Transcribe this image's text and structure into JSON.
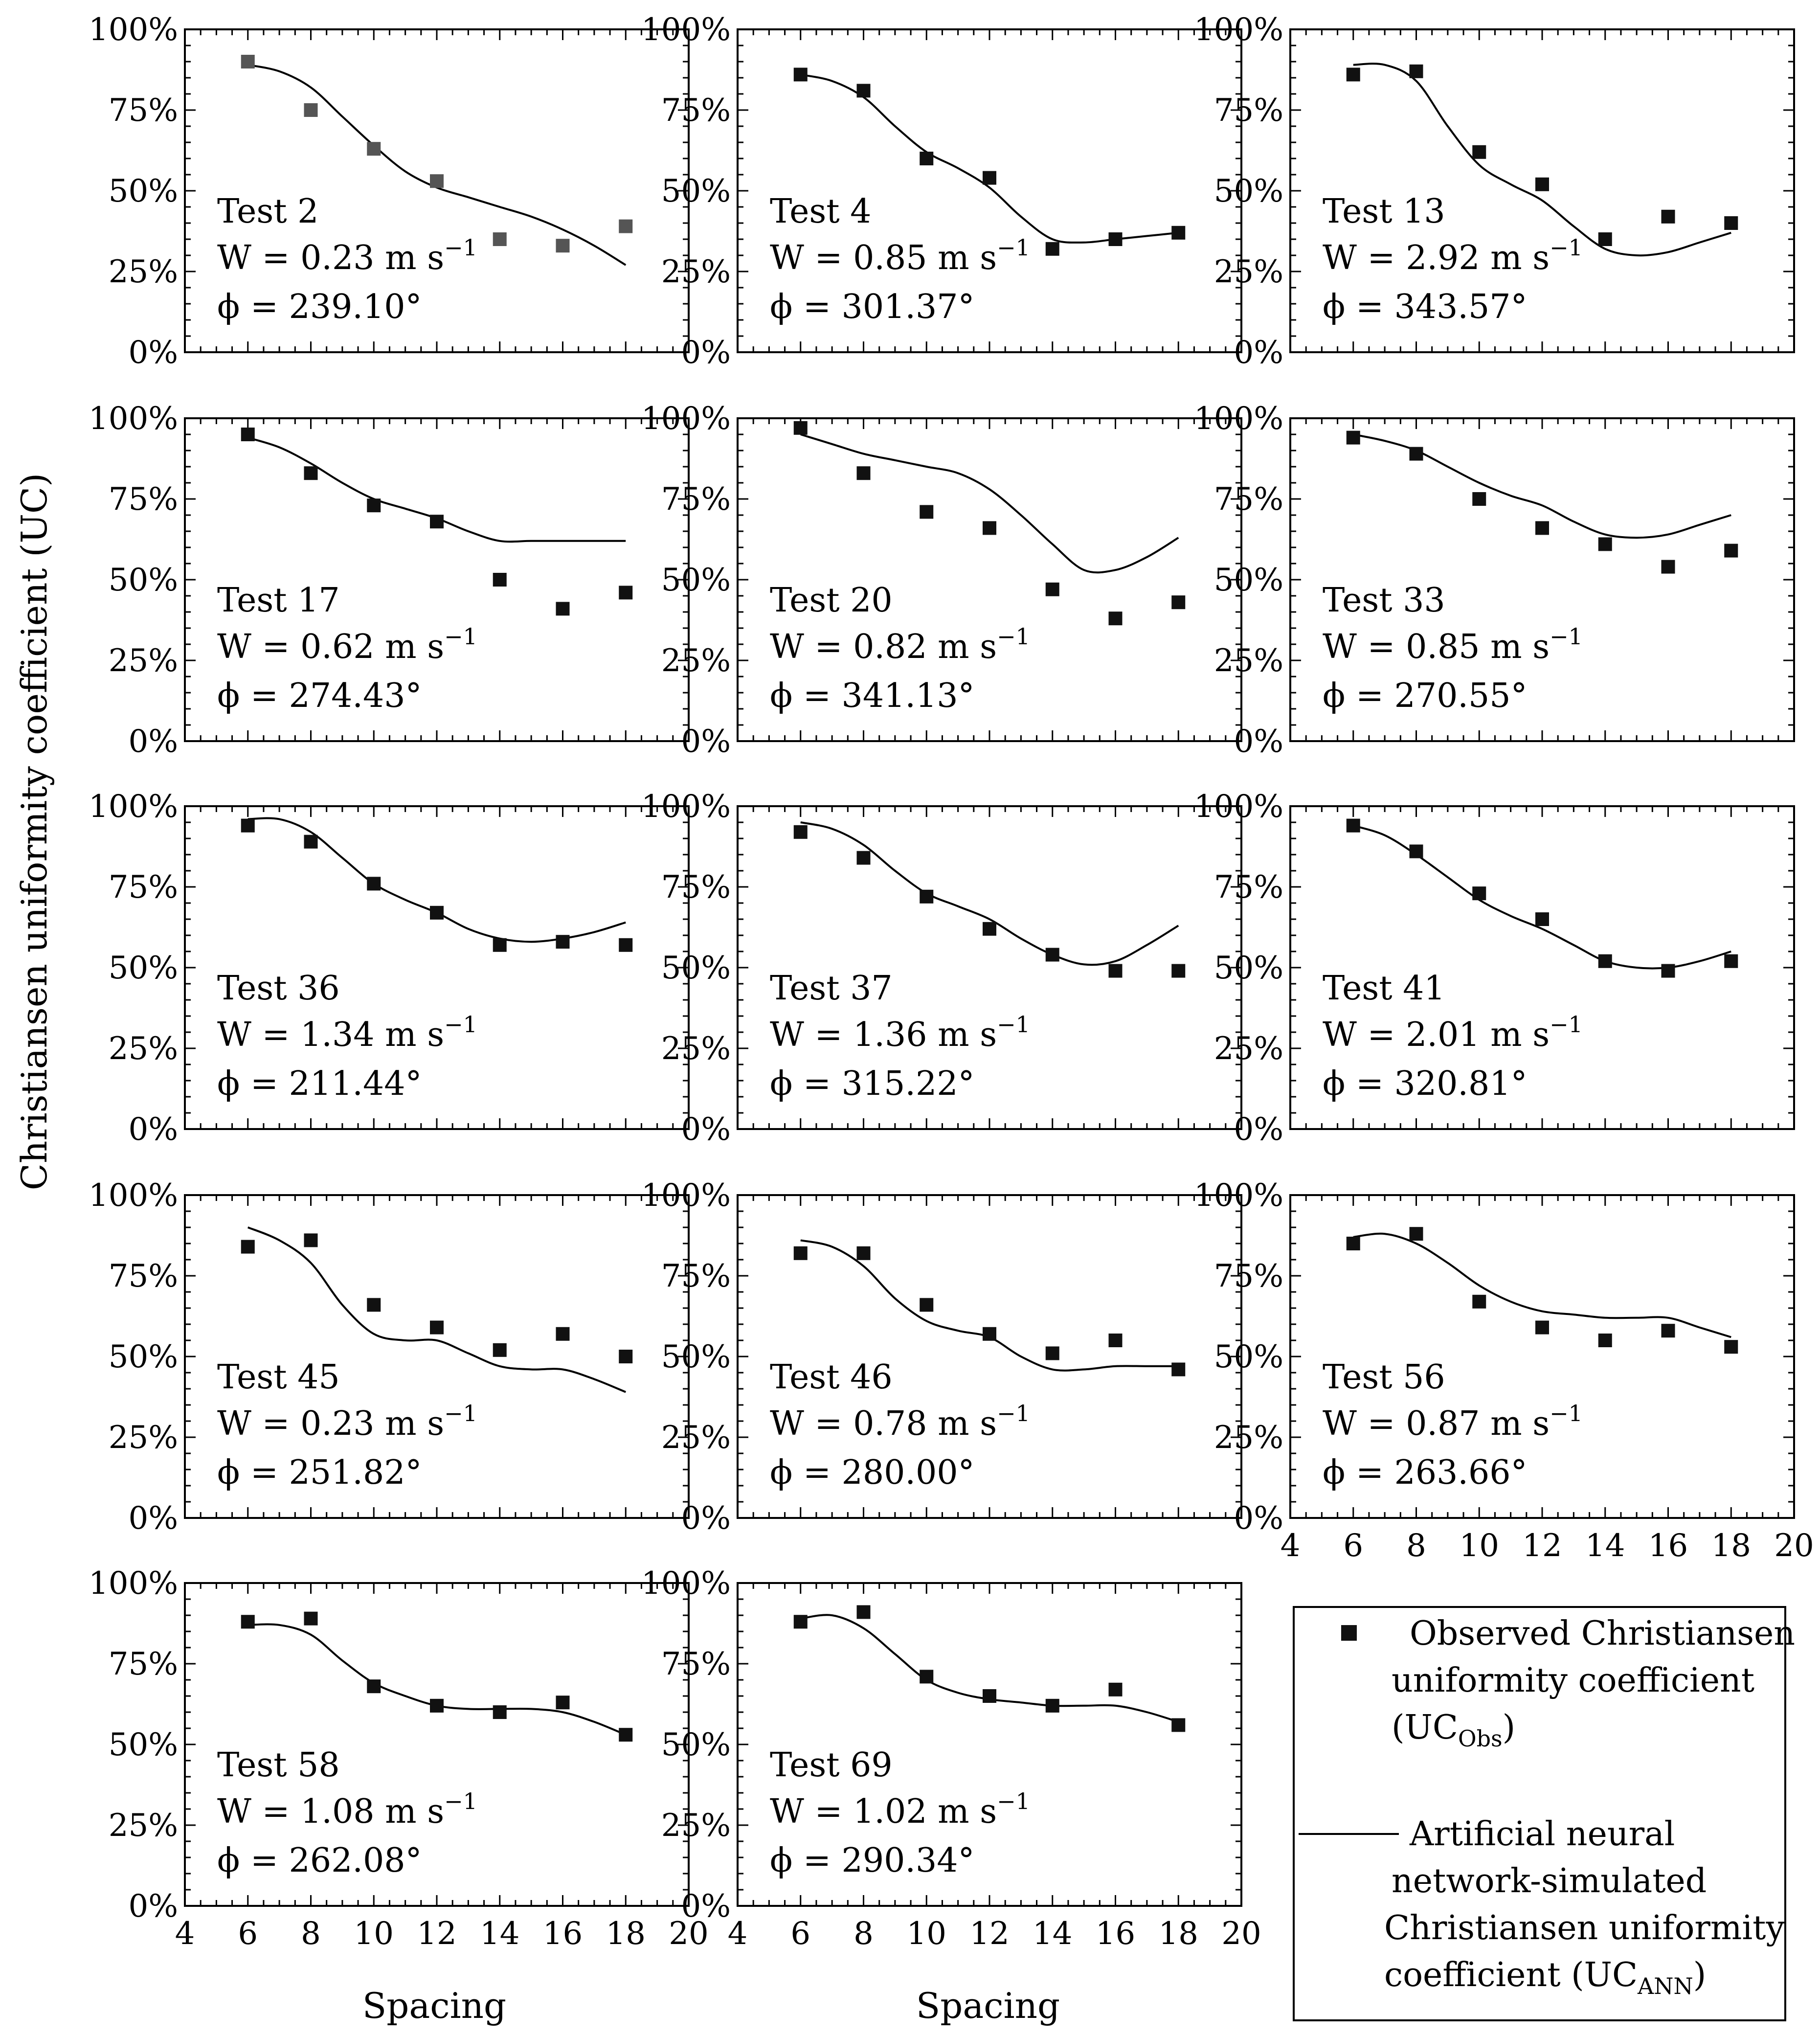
{
  "figure": {
    "ylabel": "Christiansen uniformity coefficient (UC)",
    "xlabel": "Spacing"
  },
  "legend": {
    "observed_text": [
      "Observed Christiansen",
      "uniformity coefficient"
    ],
    "observed_sym": {
      "base": "(UC",
      "sub": "Obs",
      "end": ")"
    },
    "ann_text": [
      "Artificial neural",
      "network-simulated",
      "Christiansen uniformity"
    ],
    "ann_sym": {
      "base": "coefficient (UC",
      "sub": "ANN",
      "end": ")"
    }
  },
  "colors": {
    "marker": "#111111",
    "marker_test2": "#555555",
    "line": "#000000",
    "axis": "#000000"
  },
  "chart_data": [
    {
      "type": "scatter+line",
      "title": "Test 2",
      "wind_label": "W = 0.23 m s",
      "wind_exp": "−1",
      "angle_label": "ϕ = 239.10°",
      "xlim": [
        4,
        20
      ],
      "ylim": [
        0,
        100
      ],
      "xticks": [
        4,
        6,
        8,
        10,
        12,
        14,
        16,
        18,
        20
      ],
      "yticks": [
        0,
        25,
        50,
        75,
        100
      ],
      "ytick_labels": [
        "0%",
        "25%",
        "50%",
        "75%",
        "100%"
      ],
      "observed": {
        "x": [
          6,
          8,
          10,
          12,
          14,
          16,
          18
        ],
        "y": [
          90,
          75,
          63,
          53,
          35,
          33,
          39
        ]
      },
      "ann": {
        "x": [
          6,
          7,
          8,
          9,
          10,
          11,
          12,
          13,
          14,
          15,
          16,
          17,
          18
        ],
        "y": [
          89,
          87,
          82,
          73,
          64,
          56,
          51,
          48,
          45,
          42,
          38,
          33,
          27
        ]
      },
      "marker_color": "#555555"
    },
    {
      "type": "scatter+line",
      "title": "Test 4",
      "wind_label": "W = 0.85 m s",
      "wind_exp": "−1",
      "angle_label": "ϕ = 301.37°",
      "xlim": [
        4,
        20
      ],
      "ylim": [
        0,
        100
      ],
      "xticks": [
        4,
        6,
        8,
        10,
        12,
        14,
        16,
        18,
        20
      ],
      "yticks": [
        0,
        25,
        50,
        75,
        100
      ],
      "ytick_labels": [
        "0%",
        "25%",
        "50%",
        "75%",
        "100%"
      ],
      "observed": {
        "x": [
          6,
          8,
          10,
          12,
          14,
          16,
          18
        ],
        "y": [
          86,
          81,
          60,
          54,
          32,
          35,
          37
        ]
      },
      "ann": {
        "x": [
          6,
          7,
          8,
          9,
          10,
          11,
          12,
          13,
          14,
          15,
          16,
          17,
          18
        ],
        "y": [
          86,
          84,
          79,
          70,
          62,
          57,
          51,
          42,
          35,
          34,
          35,
          36,
          37
        ]
      }
    },
    {
      "type": "scatter+line",
      "title": "Test 13",
      "wind_label": "W = 2.92 m s",
      "wind_exp": "−1",
      "angle_label": "ϕ = 343.57°",
      "xlim": [
        4,
        20
      ],
      "ylim": [
        0,
        100
      ],
      "xticks": [
        4,
        6,
        8,
        10,
        12,
        14,
        16,
        18,
        20
      ],
      "yticks": [
        0,
        25,
        50,
        75,
        100
      ],
      "ytick_labels": [
        "0%",
        "25%",
        "50%",
        "75%",
        "100%"
      ],
      "observed": {
        "x": [
          6,
          8,
          10,
          12,
          14,
          16,
          18
        ],
        "y": [
          86,
          87,
          62,
          52,
          35,
          42,
          40
        ]
      },
      "ann": {
        "x": [
          6,
          7,
          8,
          9,
          10,
          11,
          12,
          13,
          14,
          15,
          16,
          17,
          18
        ],
        "y": [
          89,
          89,
          84,
          70,
          58,
          52,
          47,
          39,
          32,
          30,
          31,
          34,
          37
        ]
      }
    },
    {
      "type": "scatter+line",
      "title": "Test 17",
      "wind_label": "W = 0.62 m s",
      "wind_exp": "−1",
      "angle_label": "ϕ = 274.43°",
      "xlim": [
        4,
        20
      ],
      "ylim": [
        0,
        100
      ],
      "xticks": [
        4,
        6,
        8,
        10,
        12,
        14,
        16,
        18,
        20
      ],
      "yticks": [
        0,
        25,
        50,
        75,
        100
      ],
      "ytick_labels": [
        "0%",
        "25%",
        "50%",
        "75%",
        "100%"
      ],
      "observed": {
        "x": [
          6,
          8,
          10,
          12,
          14,
          16,
          18
        ],
        "y": [
          95,
          83,
          73,
          68,
          50,
          41,
          46
        ]
      },
      "ann": {
        "x": [
          6,
          7,
          8,
          9,
          10,
          11,
          12,
          13,
          14,
          15,
          16,
          17,
          18
        ],
        "y": [
          94,
          91,
          86,
          80,
          75,
          72,
          69,
          65,
          62,
          62,
          62,
          62,
          62
        ]
      }
    },
    {
      "type": "scatter+line",
      "title": "Test 20",
      "wind_label": "W = 0.82 m s",
      "wind_exp": "−1",
      "angle_label": "ϕ = 341.13°",
      "xlim": [
        4,
        20
      ],
      "ylim": [
        0,
        100
      ],
      "xticks": [
        4,
        6,
        8,
        10,
        12,
        14,
        16,
        18,
        20
      ],
      "yticks": [
        0,
        25,
        50,
        75,
        100
      ],
      "ytick_labels": [
        "0%",
        "25%",
        "50%",
        "75%",
        "100%"
      ],
      "observed": {
        "x": [
          6,
          8,
          10,
          12,
          14,
          16,
          18
        ],
        "y": [
          97,
          83,
          71,
          66,
          47,
          38,
          43
        ]
      },
      "ann": {
        "x": [
          6,
          7,
          8,
          9,
          10,
          11,
          12,
          13,
          14,
          15,
          16,
          17,
          18
        ],
        "y": [
          95,
          92,
          89,
          87,
          85,
          83,
          78,
          70,
          61,
          53,
          53,
          57,
          63
        ]
      }
    },
    {
      "type": "scatter+line",
      "title": "Test 33",
      "wind_label": "W = 0.85 m s",
      "wind_exp": "−1",
      "angle_label": "ϕ = 270.55°",
      "xlim": [
        4,
        20
      ],
      "ylim": [
        0,
        100
      ],
      "xticks": [
        4,
        6,
        8,
        10,
        12,
        14,
        16,
        18,
        20
      ],
      "yticks": [
        0,
        25,
        50,
        75,
        100
      ],
      "ytick_labels": [
        "0%",
        "25%",
        "50%",
        "75%",
        "100%"
      ],
      "observed": {
        "x": [
          6,
          8,
          10,
          12,
          14,
          16,
          18
        ],
        "y": [
          94,
          89,
          75,
          66,
          61,
          54,
          59
        ]
      },
      "ann": {
        "x": [
          6,
          7,
          8,
          9,
          10,
          11,
          12,
          13,
          14,
          15,
          16,
          17,
          18
        ],
        "y": [
          95,
          93,
          90,
          85,
          80,
          76,
          73,
          68,
          64,
          63,
          64,
          67,
          70
        ]
      }
    },
    {
      "type": "scatter+line",
      "title": "Test 36",
      "wind_label": "W = 1.34 m s",
      "wind_exp": "−1",
      "angle_label": "ϕ = 211.44°",
      "xlim": [
        4,
        20
      ],
      "ylim": [
        0,
        100
      ],
      "xticks": [
        4,
        6,
        8,
        10,
        12,
        14,
        16,
        18,
        20
      ],
      "yticks": [
        0,
        25,
        50,
        75,
        100
      ],
      "ytick_labels": [
        "0%",
        "25%",
        "50%",
        "75%",
        "100%"
      ],
      "observed": {
        "x": [
          6,
          8,
          10,
          12,
          14,
          16,
          18
        ],
        "y": [
          94,
          89,
          76,
          67,
          57,
          58,
          57
        ]
      },
      "ann": {
        "x": [
          6,
          7,
          8,
          9,
          10,
          11,
          12,
          13,
          14,
          15,
          16,
          17,
          18
        ],
        "y": [
          96,
          96,
          92,
          84,
          76,
          71,
          67,
          62,
          59,
          58,
          59,
          61,
          64
        ]
      }
    },
    {
      "type": "scatter+line",
      "title": "Test 37",
      "wind_label": "W = 1.36 m s",
      "wind_exp": "−1",
      "angle_label": "ϕ = 315.22°",
      "xlim": [
        4,
        20
      ],
      "ylim": [
        0,
        100
      ],
      "xticks": [
        4,
        6,
        8,
        10,
        12,
        14,
        16,
        18,
        20
      ],
      "yticks": [
        0,
        25,
        50,
        75,
        100
      ],
      "ytick_labels": [
        "0%",
        "25%",
        "50%",
        "75%",
        "100%"
      ],
      "observed": {
        "x": [
          6,
          8,
          10,
          12,
          14,
          16,
          18
        ],
        "y": [
          92,
          84,
          72,
          62,
          54,
          49,
          49
        ]
      },
      "ann": {
        "x": [
          6,
          7,
          8,
          9,
          10,
          11,
          12,
          13,
          14,
          15,
          16,
          17,
          18
        ],
        "y": [
          95,
          93,
          88,
          80,
          73,
          69,
          65,
          59,
          54,
          51,
          52,
          57,
          63
        ]
      }
    },
    {
      "type": "scatter+line",
      "title": "Test 41",
      "wind_label": "W = 2.01 m s",
      "wind_exp": "−1",
      "angle_label": "ϕ = 320.81°",
      "xlim": [
        4,
        20
      ],
      "ylim": [
        0,
        100
      ],
      "xticks": [
        4,
        6,
        8,
        10,
        12,
        14,
        16,
        18,
        20
      ],
      "yticks": [
        0,
        25,
        50,
        75,
        100
      ],
      "ytick_labels": [
        "0%",
        "25%",
        "50%",
        "75%",
        "100%"
      ],
      "observed": {
        "x": [
          6,
          8,
          10,
          12,
          14,
          16,
          18
        ],
        "y": [
          94,
          86,
          73,
          65,
          52,
          49,
          52
        ]
      },
      "ann": {
        "x": [
          6,
          7,
          8,
          9,
          10,
          11,
          12,
          13,
          14,
          15,
          16,
          17,
          18
        ],
        "y": [
          94,
          91,
          85,
          78,
          71,
          66,
          62,
          57,
          52,
          50,
          50,
          52,
          55
        ]
      }
    },
    {
      "type": "scatter+line",
      "title": "Test 45",
      "wind_label": "W = 0.23 m s",
      "wind_exp": "−1",
      "angle_label": "ϕ = 251.82°",
      "xlim": [
        4,
        20
      ],
      "ylim": [
        0,
        100
      ],
      "xticks": [
        4,
        6,
        8,
        10,
        12,
        14,
        16,
        18,
        20
      ],
      "yticks": [
        0,
        25,
        50,
        75,
        100
      ],
      "ytick_labels": [
        "0%",
        "25%",
        "50%",
        "75%",
        "100%"
      ],
      "observed": {
        "x": [
          6,
          8,
          10,
          12,
          14,
          16,
          18
        ],
        "y": [
          84,
          86,
          66,
          59,
          52,
          57,
          50
        ]
      },
      "ann": {
        "x": [
          6,
          7,
          8,
          9,
          10,
          11,
          12,
          13,
          14,
          15,
          16,
          17,
          18
        ],
        "y": [
          90,
          86,
          79,
          66,
          57,
          55,
          55,
          51,
          47,
          46,
          46,
          43,
          39
        ]
      }
    },
    {
      "type": "scatter+line",
      "title": "Test 46",
      "wind_label": "W = 0.78 m s",
      "wind_exp": "−1",
      "angle_label": "ϕ = 280.00°",
      "xlim": [
        4,
        20
      ],
      "ylim": [
        0,
        100
      ],
      "xticks": [
        4,
        6,
        8,
        10,
        12,
        14,
        16,
        18,
        20
      ],
      "yticks": [
        0,
        25,
        50,
        75,
        100
      ],
      "ytick_labels": [
        "0%",
        "25%",
        "50%",
        "75%",
        "100%"
      ],
      "observed": {
        "x": [
          6,
          8,
          10,
          12,
          14,
          16,
          18
        ],
        "y": [
          82,
          82,
          66,
          57,
          51,
          55,
          46
        ]
      },
      "ann": {
        "x": [
          6,
          7,
          8,
          9,
          10,
          11,
          12,
          13,
          14,
          15,
          16,
          17,
          18
        ],
        "y": [
          86,
          84,
          78,
          68,
          61,
          58,
          56,
          50,
          46,
          46,
          47,
          47,
          47
        ]
      }
    },
    {
      "type": "scatter+line",
      "title": "Test 56",
      "wind_label": "W = 0.87 m s",
      "wind_exp": "−1",
      "angle_label": "ϕ = 263.66°",
      "xlim": [
        4,
        20
      ],
      "ylim": [
        0,
        100
      ],
      "xticks": [
        4,
        6,
        8,
        10,
        12,
        14,
        16,
        18,
        20
      ],
      "yticks": [
        0,
        25,
        50,
        75,
        100
      ],
      "ytick_labels": [
        "0%",
        "25%",
        "50%",
        "75%",
        "100%"
      ],
      "observed": {
        "x": [
          6,
          8,
          10,
          12,
          14,
          16,
          18
        ],
        "y": [
          85,
          88,
          67,
          59,
          55,
          58,
          53
        ]
      },
      "ann": {
        "x": [
          6,
          7,
          8,
          9,
          10,
          11,
          12,
          13,
          14,
          15,
          16,
          17,
          18
        ],
        "y": [
          87,
          88,
          85,
          79,
          72,
          67,
          64,
          63,
          62,
          62,
          62,
          59,
          56
        ]
      }
    },
    {
      "type": "scatter+line",
      "title": "Test 58",
      "wind_label": "W = 1.08 m s",
      "wind_exp": "−1",
      "angle_label": "ϕ = 262.08°",
      "xlim": [
        4,
        20
      ],
      "ylim": [
        0,
        100
      ],
      "xticks": [
        4,
        6,
        8,
        10,
        12,
        14,
        16,
        18,
        20
      ],
      "yticks": [
        0,
        25,
        50,
        75,
        100
      ],
      "ytick_labels": [
        "0%",
        "25%",
        "50%",
        "75%",
        "100%"
      ],
      "observed": {
        "x": [
          6,
          8,
          10,
          12,
          14,
          16,
          18
        ],
        "y": [
          88,
          89,
          68,
          62,
          60,
          63,
          53
        ]
      },
      "ann": {
        "x": [
          6,
          7,
          8,
          9,
          10,
          11,
          12,
          13,
          14,
          15,
          16,
          17,
          18
        ],
        "y": [
          87,
          87,
          84,
          76,
          69,
          65,
          62,
          61,
          61,
          61,
          60,
          57,
          53
        ]
      }
    },
    {
      "type": "scatter+line",
      "title": "Test 69",
      "wind_label": "W = 1.02 m s",
      "wind_exp": "−1",
      "angle_label": "ϕ = 290.34°",
      "xlim": [
        4,
        20
      ],
      "ylim": [
        0,
        100
      ],
      "xticks": [
        4,
        6,
        8,
        10,
        12,
        14,
        16,
        18,
        20
      ],
      "yticks": [
        0,
        25,
        50,
        75,
        100
      ],
      "ytick_labels": [
        "0%",
        "25%",
        "50%",
        "75%",
        "100%"
      ],
      "observed": {
        "x": [
          6,
          8,
          10,
          12,
          14,
          16,
          18
        ],
        "y": [
          88,
          91,
          71,
          65,
          62,
          67,
          56
        ]
      },
      "ann": {
        "x": [
          6,
          7,
          8,
          9,
          10,
          11,
          12,
          13,
          14,
          15,
          16,
          17,
          18
        ],
        "y": [
          89,
          90,
          86,
          78,
          70,
          66,
          64,
          63,
          62,
          62,
          62,
          60,
          57
        ]
      }
    }
  ]
}
